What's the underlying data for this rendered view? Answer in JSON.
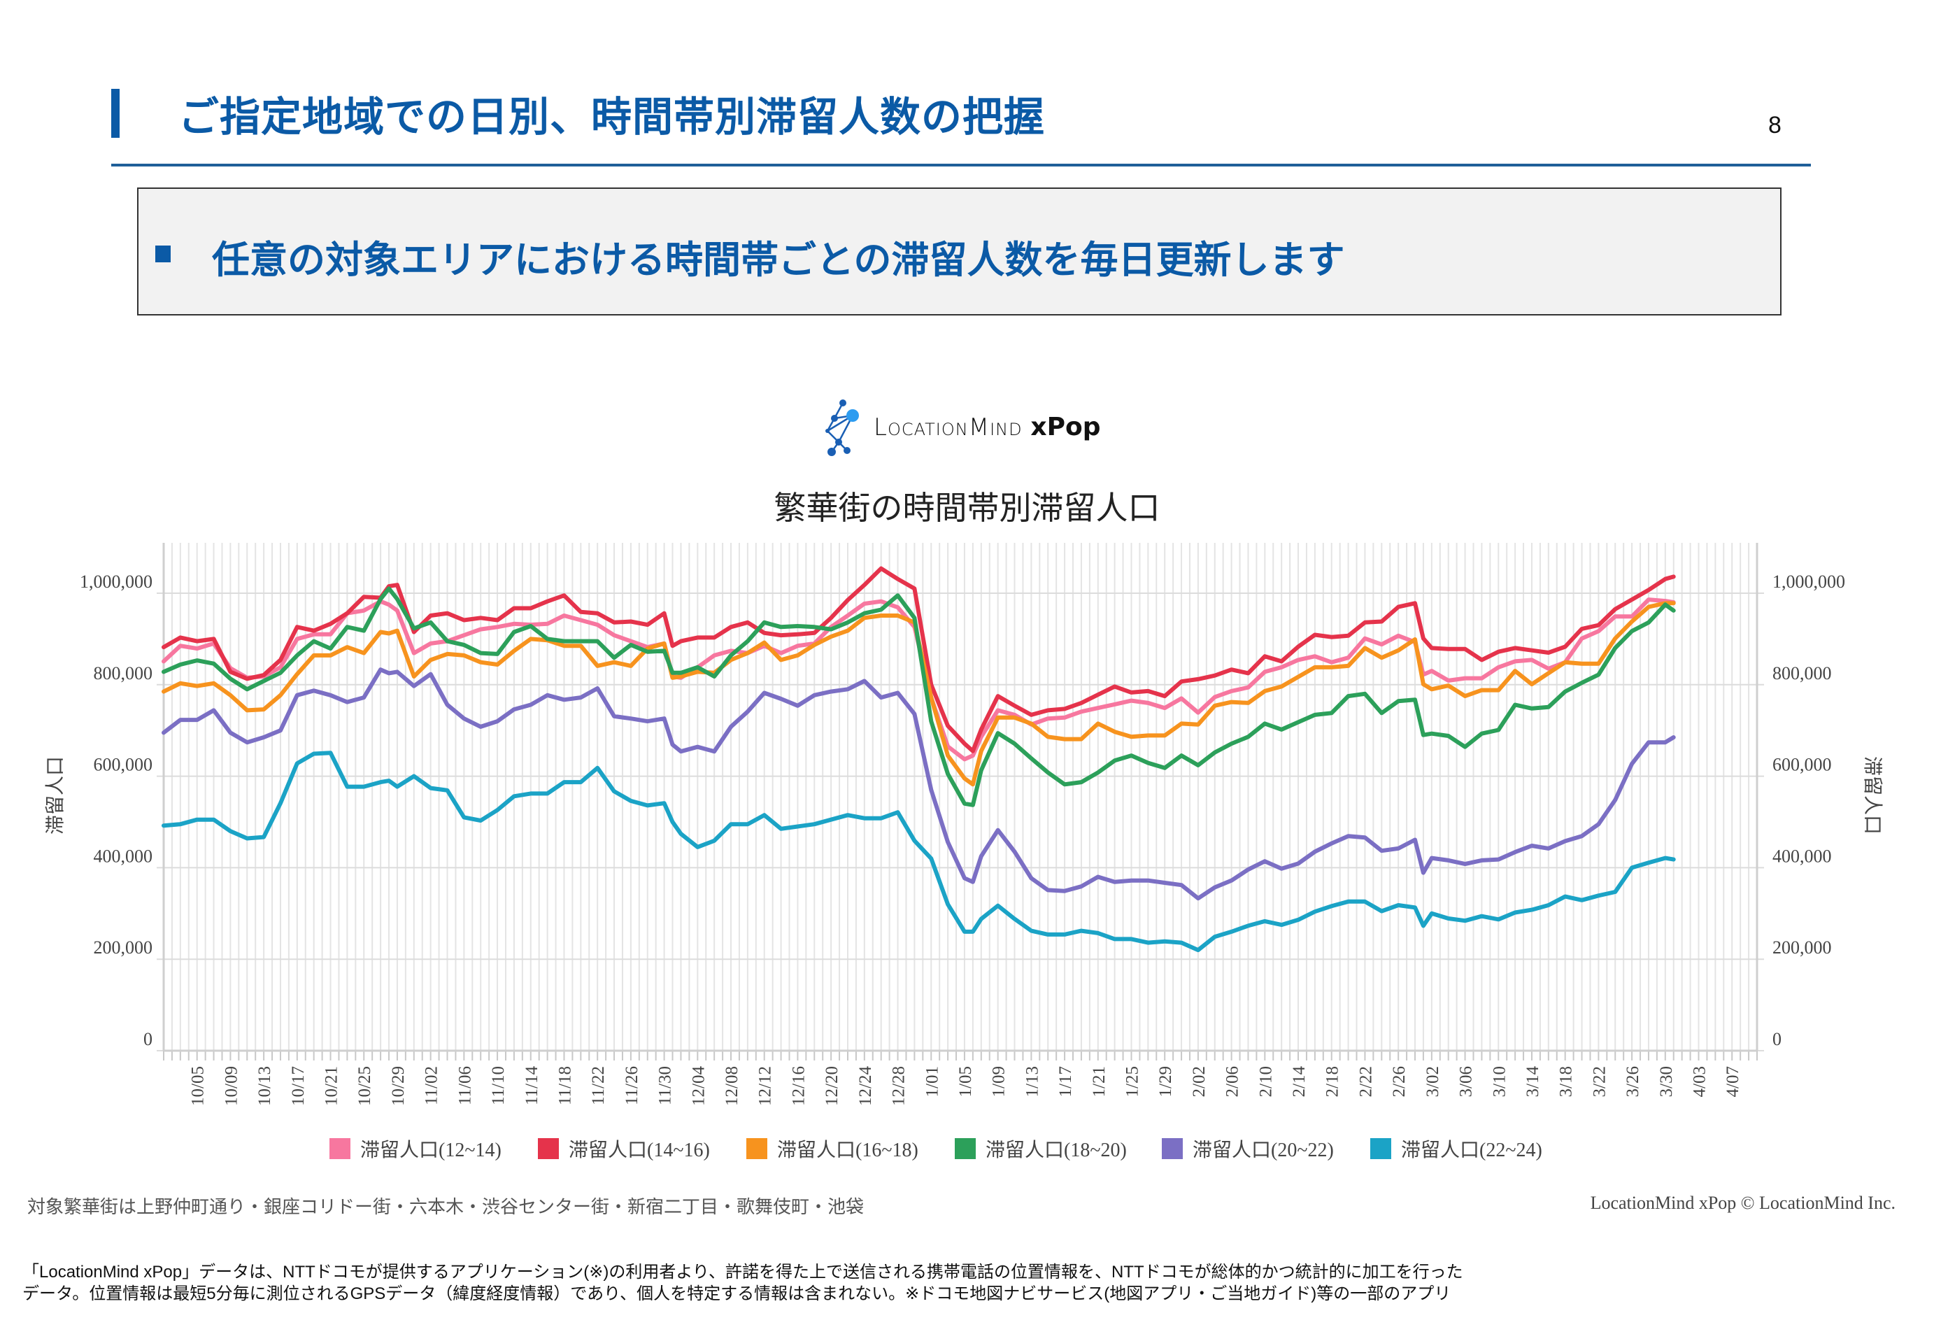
{
  "header": {
    "title": "ご指定地域での日別、時間帯別滞留人数の把握",
    "page_number": "8"
  },
  "summary": {
    "text": "任意の対象エリアにおける時間帯ごとの滞留人数を毎日更新します"
  },
  "logo": {
    "text": "LocationMind",
    "suffix": "xPop"
  },
  "chart_data": {
    "type": "line",
    "title": "繁華街の時間帯別滞留人口",
    "ylabel": "滞留人口",
    "ylabel_right": "滞留人口",
    "xlim": [
      "10/01",
      "4/10"
    ],
    "ylim": [
      0,
      1110000
    ],
    "grid": true,
    "legend_position": "bottom",
    "y_ticks": [
      0,
      200000,
      400000,
      600000,
      800000,
      1000000
    ],
    "y_tick_labels": [
      "0",
      "200,000",
      "400,000",
      "600,000",
      "800,000",
      "1,000,000"
    ],
    "x_tick_labels": [
      "10/05",
      "10/09",
      "10/13",
      "10/17",
      "10/21",
      "10/25",
      "10/29",
      "11/02",
      "11/06",
      "11/10",
      "11/14",
      "11/18",
      "11/22",
      "11/26",
      "11/30",
      "12/04",
      "12/08",
      "12/12",
      "12/16",
      "12/20",
      "12/24",
      "12/28",
      "1/01",
      "1/05",
      "1/09",
      "1/13",
      "1/17",
      "1/21",
      "1/25",
      "1/29",
      "2/02",
      "2/06",
      "2/10",
      "2/14",
      "2/18",
      "2/22",
      "2/26",
      "3/02",
      "3/06",
      "3/10",
      "3/14",
      "3/18",
      "3/22",
      "3/26",
      "3/30",
      "4/03",
      "4/07"
    ],
    "x": [
      "10/01",
      "10/03",
      "10/05",
      "10/07",
      "10/09",
      "10/11",
      "10/13",
      "10/15",
      "10/17",
      "10/19",
      "10/21",
      "10/23",
      "10/25",
      "10/27",
      "10/28",
      "10/29",
      "10/31",
      "11/02",
      "11/04",
      "11/06",
      "11/08",
      "11/10",
      "11/12",
      "11/14",
      "11/16",
      "11/18",
      "11/20",
      "11/22",
      "11/24",
      "11/26",
      "11/28",
      "11/30",
      "12/01",
      "12/02",
      "12/04",
      "12/06",
      "12/08",
      "12/10",
      "12/12",
      "12/14",
      "12/16",
      "12/18",
      "12/20",
      "12/22",
      "12/24",
      "12/26",
      "12/28",
      "12/30",
      "1/01",
      "1/03",
      "1/05",
      "1/06",
      "1/07",
      "1/09",
      "1/11",
      "1/13",
      "1/15",
      "1/17",
      "1/19",
      "1/21",
      "1/23",
      "1/25",
      "1/27",
      "1/29",
      "1/31",
      "2/02",
      "2/04",
      "2/06",
      "2/08",
      "2/10",
      "2/12",
      "2/14",
      "2/16",
      "2/18",
      "2/20",
      "2/22",
      "2/24",
      "2/26",
      "2/28",
      "3/01",
      "3/02",
      "3/04",
      "3/06",
      "3/08",
      "3/10",
      "3/12",
      "3/14",
      "3/16",
      "3/18",
      "3/20",
      "3/22",
      "3/24",
      "3/26",
      "3/28",
      "3/30",
      "3/31"
    ],
    "series": [
      {
        "name": "滞留人口(12~14)",
        "color": "#f7779f",
        "values": [
          851000,
          885000,
          879000,
          890000,
          836000,
          815000,
          818000,
          838000,
          900000,
          910000,
          910000,
          956000,
          962000,
          982000,
          975000,
          962000,
          869000,
          890000,
          895000,
          908000,
          921000,
          926000,
          933000,
          931000,
          933000,
          951000,
          941000,
          931000,
          908000,
          895000,
          882000,
          890000,
          818000,
          815000,
          838000,
          864000,
          874000,
          869000,
          885000,
          869000,
          885000,
          890000,
          926000,
          951000,
          977000,
          982000,
          969000,
          926000,
          772000,
          665000,
          637000,
          645000,
          686000,
          744000,
          734000,
          713000,
          726000,
          728000,
          741000,
          749000,
          757000,
          765000,
          760000,
          749000,
          770000,
          739000,
          773000,
          786000,
          794000,
          828000,
          838000,
          854000,
          862000,
          849000,
          859000,
          901000,
          888000,
          907000,
          893000,
          822000,
          830000,
          809000,
          814000,
          814000,
          838000,
          851000,
          854000,
          835000,
          849000,
          901000,
          917000,
          949000,
          949000,
          986000,
          983000,
          980000
        ]
      },
      {
        "name": "滞留人口(14~16)",
        "color": "#e5334b",
        "values": [
          882000,
          903000,
          895000,
          900000,
          828000,
          813000,
          821000,
          854000,
          926000,
          918000,
          933000,
          956000,
          992000,
          990000,
          1015000,
          1018000,
          915000,
          951000,
          956000,
          941000,
          946000,
          941000,
          967000,
          967000,
          982000,
          995000,
          959000,
          956000,
          936000,
          938000,
          931000,
          956000,
          885000,
          895000,
          903000,
          903000,
          926000,
          936000,
          913000,
          908000,
          910000,
          913000,
          946000,
          985000,
          1018000,
          1054000,
          1031000,
          1010000,
          800000,
          710000,
          671000,
          655000,
          702000,
          775000,
          754000,
          734000,
          744000,
          747000,
          760000,
          778000,
          796000,
          783000,
          786000,
          775000,
          807000,
          812000,
          820000,
          833000,
          825000,
          862000,
          851000,
          883000,
          909000,
          904000,
          907000,
          936000,
          938000,
          970000,
          978000,
          901000,
          880000,
          878000,
          878000,
          854000,
          872000,
          880000,
          875000,
          870000,
          883000,
          922000,
          930000,
          965000,
          986000,
          1007000,
          1031000,
          1036000
        ]
      },
      {
        "name": "滞留人口(16~18)",
        "color": "#f7931e",
        "values": [
          785000,
          803000,
          797000,
          803000,
          777000,
          744000,
          746000,
          777000,
          823000,
          864000,
          864000,
          882000,
          869000,
          915000,
          912000,
          918000,
          818000,
          854000,
          867000,
          864000,
          849000,
          844000,
          874000,
          900000,
          897000,
          885000,
          885000,
          841000,
          849000,
          841000,
          879000,
          890000,
          815000,
          818000,
          828000,
          826000,
          854000,
          869000,
          892000,
          854000,
          864000,
          887000,
          905000,
          918000,
          946000,
          951000,
          951000,
          936000,
          772000,
          645000,
          595000,
          582000,
          655000,
          728000,
          728000,
          715000,
          686000,
          681000,
          681000,
          715000,
          697000,
          686000,
          689000,
          689000,
          715000,
          713000,
          754000,
          762000,
          760000,
          786000,
          796000,
          817000,
          838000,
          838000,
          841000,
          880000,
          859000,
          875000,
          899000,
          801000,
          790000,
          798000,
          775000,
          788000,
          788000,
          830000,
          801000,
          825000,
          849000,
          846000,
          846000,
          901000,
          938000,
          970000,
          978000,
          978000
        ]
      },
      {
        "name": "滞留人口(18~20)",
        "color": "#2ca05a",
        "values": [
          828000,
          844000,
          853000,
          846000,
          813000,
          790000,
          808000,
          826000,
          864000,
          895000,
          879000,
          926000,
          918000,
          987000,
          1010000,
          987000,
          923000,
          936000,
          895000,
          887000,
          869000,
          867000,
          915000,
          928000,
          900000,
          895000,
          895000,
          895000,
          859000,
          887000,
          872000,
          874000,
          826000,
          826000,
          838000,
          818000,
          864000,
          895000,
          936000,
          926000,
          928000,
          926000,
          921000,
          936000,
          956000,
          964000,
          995000,
          946000,
          720000,
          605000,
          540000,
          537000,
          613000,
          694000,
          671000,
          639000,
          608000,
          582000,
          587000,
          608000,
          634000,
          645000,
          629000,
          618000,
          645000,
          624000,
          652000,
          671000,
          686000,
          715000,
          702000,
          718000,
          734000,
          738000,
          775000,
          780000,
          738000,
          764000,
          767000,
          690000,
          693000,
          688000,
          664000,
          693000,
          701000,
          756000,
          748000,
          751000,
          785000,
          804000,
          822000,
          880000,
          917000,
          936000,
          975000,
          962000
        ]
      },
      {
        "name": "滞留人口(20~22)",
        "color": "#7b6fc4",
        "values": [
          695000,
          723000,
          723000,
          744000,
          695000,
          674000,
          685000,
          700000,
          777000,
          787000,
          777000,
          762000,
          772000,
          833000,
          825000,
          828000,
          797000,
          823000,
          756000,
          726000,
          708000,
          720000,
          746000,
          756000,
          777000,
          767000,
          772000,
          792000,
          731000,
          726000,
          720000,
          726000,
          669000,
          654000,
          664000,
          654000,
          708000,
          741000,
          782000,
          769000,
          754000,
          777000,
          785000,
          790000,
          808000,
          772000,
          782000,
          736000,
          570000,
          456000,
          377000,
          369000,
          425000,
          482000,
          435000,
          377000,
          351000,
          349000,
          359000,
          380000,
          369000,
          372000,
          372000,
          367000,
          362000,
          333000,
          357000,
          372000,
          396000,
          414000,
          398000,
          409000,
          435000,
          453000,
          469000,
          466000,
          437000,
          442000,
          461000,
          389000,
          421000,
          416000,
          408000,
          416000,
          418000,
          434000,
          448000,
          442000,
          458000,
          469000,
          495000,
          548000,
          627000,
          674000,
          674000,
          685000
        ]
      },
      {
        "name": "滞留人口(22~24)",
        "color": "#1ba3c6",
        "values": [
          492000,
          495000,
          505000,
          505000,
          480000,
          464000,
          467000,
          541000,
          628000,
          649000,
          651000,
          577000,
          577000,
          587000,
          590000,
          577000,
          600000,
          574000,
          569000,
          510000,
          503000,
          526000,
          556000,
          562000,
          562000,
          587000,
          587000,
          618000,
          567000,
          546000,
          536000,
          541000,
          500000,
          474000,
          445000,
          459000,
          495000,
          495000,
          515000,
          485000,
          490000,
          495000,
          505000,
          515000,
          508000,
          508000,
          521000,
          459000,
          420000,
          320000,
          260000,
          260000,
          288000,
          317000,
          288000,
          262000,
          254000,
          254000,
          262000,
          257000,
          244000,
          244000,
          236000,
          239000,
          236000,
          220000,
          249000,
          260000,
          273000,
          283000,
          275000,
          286000,
          304000,
          316000,
          326000,
          326000,
          305000,
          318000,
          313000,
          273000,
          300000,
          289000,
          284000,
          294000,
          287000,
          302000,
          308000,
          318000,
          337000,
          329000,
          339000,
          347000,
          400000,
          411000,
          421000,
          418000
        ]
      }
    ]
  },
  "footer": {
    "area_note": "対象繁華街は上野仲町通り・銀座コリドー街・六本木・渋谷センター街・新宿二丁目・歌舞伎町・池袋",
    "copyright": "LocationMind xPop © LocationMind Inc.",
    "disclaimer_line1": "「LocationMind xPop」データは、NTTドコモが提供するアプリケーション(※)の利用者より、許諾を得た上で送信される携帯電話の位置情報を、NTTドコモが総体的かつ統計的に加工を行った",
    "disclaimer_line2": "データ。位置情報は最短5分毎に測位されるGPSデータ（緯度経度情報）であり、個人を特定する情報は含まれない。※ドコモ地図ナビサービス(地図アプリ・ご当地ガイド)等の一部のアプリ"
  }
}
